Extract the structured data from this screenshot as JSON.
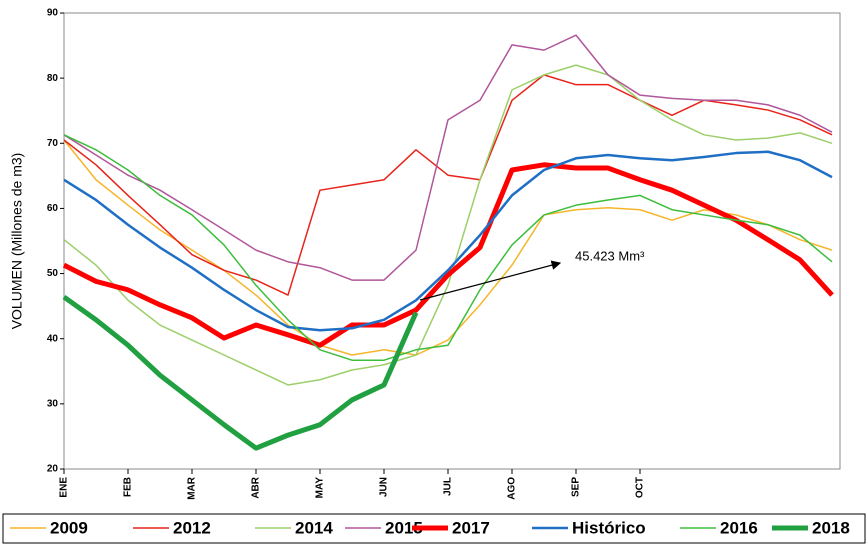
{
  "chart_data": {
    "type": "line",
    "y_label": "VOLUMEN (Millones de m3)",
    "annotation": "45.423 Mm³",
    "x": [
      0,
      0.5,
      1,
      1.5,
      2,
      2.5,
      3,
      3.5,
      4,
      4.5,
      5,
      5.5,
      6,
      6.5,
      7,
      7.5,
      8,
      8.5,
      9,
      9.5,
      10,
      10.5,
      11,
      11.5,
      12
    ],
    "xlim": [
      0,
      12
    ],
    "xticks": [
      {
        "value": 0,
        "label": "ENE"
      },
      {
        "value": 1,
        "label": "FEB"
      },
      {
        "value": 2,
        "label": "MAR"
      },
      {
        "value": 3,
        "label": "ABR"
      },
      {
        "value": 4,
        "label": "MAY"
      },
      {
        "value": 5,
        "label": "JUN"
      },
      {
        "value": 6,
        "label": "JUL"
      },
      {
        "value": 7,
        "label": "AGO"
      },
      {
        "value": 8,
        "label": "SEP"
      },
      {
        "value": 9,
        "label": "OCT"
      }
    ],
    "ylim": [
      20,
      90
    ],
    "yticks": [
      20,
      30,
      40,
      50,
      60,
      70,
      80,
      90
    ],
    "legend": "bottom",
    "series": [
      {
        "name": "2009",
        "color": "#f5b52a",
        "line_width": 1.5,
        "values": [
          70.5,
          64.4,
          60.5,
          56.7,
          53.6,
          50.5,
          46.7,
          42.1,
          39,
          37.5,
          38.3,
          37.5,
          39.8,
          45.2,
          51.3,
          59,
          59.8,
          60.1,
          59.8,
          58.2,
          59.8,
          59,
          57.5,
          55.2,
          53.6
        ]
      },
      {
        "name": "2012",
        "color": "#e8231a",
        "line_width": 1.5,
        "values": [
          70.5,
          66.7,
          62,
          57.5,
          52.9,
          50.5,
          49,
          46.7,
          62.8,
          63.6,
          64.4,
          69,
          65.1,
          64.4,
          76.6,
          80.5,
          79,
          79,
          76.6,
          74.3,
          76.6,
          75.9,
          75.1,
          73.6,
          71.3
        ]
      },
      {
        "name": "2014",
        "color": "#9ccf6a",
        "line_width": 1.5,
        "values": [
          55.2,
          51.3,
          45.9,
          42.1,
          39.8,
          37.5,
          35.2,
          32.9,
          33.7,
          35.2,
          36,
          37.5,
          48.2,
          64.4,
          78.2,
          80.5,
          82,
          80.5,
          76.6,
          73.6,
          71.3,
          70.5,
          70.8,
          71.6,
          70
        ]
      },
      {
        "name": "2015",
        "color": "#b0569a",
        "line_width": 1.5,
        "values": [
          71.3,
          68.2,
          65.1,
          62.8,
          59.8,
          56.7,
          53.6,
          51.8,
          50.9,
          49,
          49,
          53.6,
          73.6,
          76.6,
          85.1,
          84.3,
          86.6,
          80.5,
          77.4,
          76.9,
          76.6,
          76.6,
          75.9,
          74.3,
          71.7
        ]
      },
      {
        "name": "2017",
        "color": "#ff0000",
        "line_width": 5,
        "values": [
          51.3,
          48.8,
          47.5,
          45.2,
          43.2,
          40.1,
          42.1,
          40.6,
          39,
          42.1,
          42.1,
          44.4,
          49.8,
          54,
          65.9,
          66.7,
          66.2,
          66.2,
          64.4,
          62.8,
          60.5,
          58.2,
          55.2,
          52.1,
          46.7
        ]
      },
      {
        "name": "Histórico",
        "color": "#1f6fc4",
        "line_width": 2.5,
        "values": [
          64.4,
          61.3,
          57.5,
          54,
          50.9,
          47.5,
          44.4,
          41.8,
          41.3,
          41.6,
          42.9,
          45.9,
          50.5,
          55.9,
          62,
          65.9,
          67.7,
          68.2,
          67.7,
          67.4,
          67.9,
          68.5,
          68.7,
          67.4,
          64.8
        ]
      },
      {
        "name": "2016",
        "color": "#3cbd3c",
        "line_width": 1.5,
        "values": [
          71.3,
          69,
          65.9,
          62,
          59,
          54.4,
          48.2,
          42.9,
          38.3,
          36.7,
          36.7,
          38.3,
          39,
          47.5,
          54.4,
          59,
          60.5,
          61.3,
          62,
          59.8,
          59,
          58.2,
          57.5,
          55.9,
          51.8
        ]
      },
      {
        "name": "2018",
        "color": "#20a040",
        "line_width": 5,
        "values": [
          46.4,
          42.9,
          39,
          34.4,
          30.6,
          26.8,
          23.2,
          25.2,
          26.8,
          30.6,
          32.9,
          44,
          null,
          null,
          null,
          null,
          null,
          null,
          null,
          null,
          null,
          null,
          null,
          null,
          null
        ]
      }
    ]
  }
}
